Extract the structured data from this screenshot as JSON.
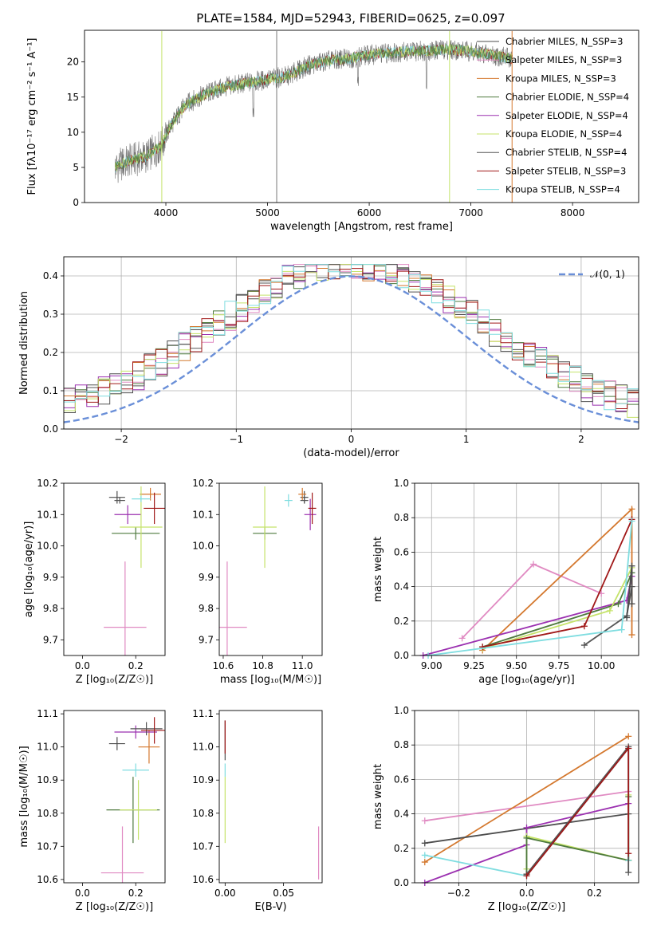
{
  "colors": {
    "chabrier_miles": "#4d4d4d",
    "salpeter_miles": "#e08ac2",
    "kroupa_miles": "#d4782e",
    "chabrier_elodie": "#4e7a3e",
    "salpeter_elodie": "#9b30b0",
    "kroupa_elodie": "#c5e36a",
    "chabrier_stelib": "#555555",
    "salpeter_stelib": "#a01818",
    "kroupa_stelib": "#7fdde0",
    "normal_curve": "#6a8fd8"
  },
  "chart_data": [
    {
      "type": "line",
      "title": "PLATE=1584, MJD=52943, FIBERID=0625, z=0.097",
      "xlabel": "wavelength [Angstrom, rest frame]",
      "ylabel": "Flux [fλ10⁻¹⁷ erg cm⁻² s⁻¹ A⁻¹]",
      "xlim": [
        3200,
        8650
      ],
      "ylim": [
        0,
        24.5
      ],
      "xticks": [
        "4000",
        "5000",
        "6000",
        "7000",
        "8000"
      ],
      "yticks": [
        "0",
        "5",
        "10",
        "15",
        "20"
      ],
      "grid": false,
      "legend_position": "right",
      "legend": [
        "Chabrier MILES, N_SSP=3",
        "Salpeter MILES, N_SSP=3",
        "Kroupa MILES, N_SSP=3",
        "Chabrier ELODIE, N_SSP=4",
        "Salpeter ELODIE, N_SSP=4",
        "Kroupa ELODIE, N_SSP=4",
        "Chabrier STELIB, N_SSP=4",
        "Salpeter STELIB, N_SSP=3",
        "Kroupa STELIB, N_SSP=4"
      ],
      "spectrum_anchors": {
        "x": [
          3500,
          3650,
          3800,
          3950,
          4050,
          4200,
          4400,
          4600,
          4800,
          5000,
          5200,
          5400,
          5600,
          5800,
          6000,
          6200,
          6400,
          6600,
          6800,
          7000,
          7200,
          7400
        ],
        "y": [
          5,
          6,
          6.5,
          8,
          11,
          14,
          15.5,
          16.5,
          17,
          17.5,
          18,
          19.5,
          20.2,
          20.5,
          21,
          21.3,
          21.5,
          21.6,
          21.8,
          21.5,
          21,
          20.5
        ]
      }
    },
    {
      "type": "bar",
      "xlabel": "(data-model)/error",
      "ylabel": "Normed distribution",
      "xlim": [
        -2.5,
        2.5
      ],
      "ylim": [
        0,
        0.45
      ],
      "xticks": [
        "−2",
        "−1",
        "0",
        "1",
        "2"
      ],
      "yticks": [
        "0.0",
        "0.1",
        "0.2",
        "0.3",
        "0.4"
      ],
      "grid": true,
      "legend_position": "top-right",
      "legend": [
        "𝒩(0, 1)"
      ],
      "bin_width": 0.1
    },
    {
      "type": "scatter",
      "xlabel": "Z [log₁₀(Z/Z☉)]",
      "ylabel": "age  [log₁₀(age/yr)]",
      "xlim": [
        -0.07,
        0.31
      ],
      "ylim": [
        9.65,
        10.2
      ],
      "xticks": [
        "0.0",
        "0.2"
      ],
      "yticks": [
        "9.7",
        "9.8",
        "9.9",
        "10.0",
        "10.1",
        "10.2"
      ],
      "series": [
        {
          "key": "chabrier_miles",
          "x": 0.13,
          "y": 10.155,
          "xerr": 0.03,
          "yerr": 0.02
        },
        {
          "key": "salpeter_miles",
          "x": 0.16,
          "y": 9.74,
          "xerr": 0.08,
          "yerr": 0.21
        },
        {
          "key": "kroupa_miles",
          "x": 0.255,
          "y": 10.165,
          "xerr": 0.04,
          "yerr": 0.02
        },
        {
          "key": "chabrier_elodie",
          "x": 0.2,
          "y": 10.04,
          "xerr": 0.09,
          "yerr": 0.02
        },
        {
          "key": "salpeter_elodie",
          "x": 0.17,
          "y": 10.1,
          "xerr": 0.05,
          "yerr": 0.03
        },
        {
          "key": "kroupa_elodie",
          "x": 0.22,
          "y": 10.06,
          "xerr": 0.08,
          "yerr": 0.13
        },
        {
          "key": "chabrier_stelib",
          "x": 0.14,
          "y": 10.145,
          "xerr": 0.02,
          "yerr": 0.01
        },
        {
          "key": "salpeter_stelib",
          "x": 0.27,
          "y": 10.12,
          "xerr": 0.04,
          "yerr": 0.05
        },
        {
          "key": "kroupa_stelib",
          "x": 0.22,
          "y": 10.15,
          "xerr": 0.035,
          "yerr": 0.01
        }
      ]
    },
    {
      "type": "scatter",
      "xlabel": "mass [log₁₀(M/M☉)]",
      "ylabel": "",
      "xlim": [
        10.58,
        11.1
      ],
      "ylim": [
        9.65,
        10.2
      ],
      "xticks": [
        "10.6",
        "10.8",
        "11.0"
      ],
      "yticks": [
        "9.7",
        "9.8",
        "9.9",
        "10.0",
        "10.1",
        "10.2"
      ],
      "series": [
        {
          "key": "chabrier_miles",
          "x": 11.01,
          "y": 10.155,
          "xerr": 0.02,
          "yerr": 0.02
        },
        {
          "key": "salpeter_miles",
          "x": 10.62,
          "y": 9.74,
          "xerr": 0.1,
          "yerr": 0.21
        },
        {
          "key": "kroupa_miles",
          "x": 11.0,
          "y": 10.165,
          "xerr": 0.02,
          "yerr": 0.02
        },
        {
          "key": "chabrier_elodie",
          "x": 10.81,
          "y": 10.04,
          "xerr": 0.06,
          "yerr": 0.02
        },
        {
          "key": "salpeter_elodie",
          "x": 11.04,
          "y": 10.1,
          "xerr": 0.03,
          "yerr": 0.05
        },
        {
          "key": "kroupa_elodie",
          "x": 10.81,
          "y": 10.06,
          "xerr": 0.06,
          "yerr": 0.13
        },
        {
          "key": "chabrier_stelib",
          "x": 11.01,
          "y": 10.145,
          "xerr": 0.02,
          "yerr": 0.01
        },
        {
          "key": "salpeter_stelib",
          "x": 11.05,
          "y": 10.12,
          "xerr": 0.02,
          "yerr": 0.05
        },
        {
          "key": "kroupa_stelib",
          "x": 10.93,
          "y": 10.145,
          "xerr": 0.02,
          "yerr": 0.02
        }
      ]
    },
    {
      "type": "line",
      "xlabel": "age  [log₁₀(age/yr)]",
      "ylabel": "mass weight",
      "xlim": [
        8.9,
        10.22
      ],
      "ylim": [
        0,
        1.0
      ],
      "xticks": [
        "9.00",
        "9.25",
        "9.50",
        "9.75",
        "10.00"
      ],
      "yticks": [
        "0.0",
        "0.2",
        "0.4",
        "0.6",
        "0.8",
        "1.0"
      ],
      "grid": true,
      "series": [
        {
          "key": "salpeter_miles",
          "x": [
            9.18,
            9.6,
            10.0
          ],
          "y": [
            0.1,
            0.53,
            0.36
          ]
        },
        {
          "key": "kroupa_miles",
          "x": [
            9.3,
            10.18,
            10.18
          ],
          "y": [
            0.03,
            0.85,
            0.12
          ]
        },
        {
          "key": "salpeter_elodie",
          "x": [
            8.95,
            10.15,
            10.18
          ],
          "y": [
            0.0,
            0.32,
            0.46
          ]
        },
        {
          "key": "chabrier_elodie",
          "x": [
            9.3,
            10.1,
            10.18
          ],
          "y": [
            0.05,
            0.3,
            0.48
          ]
        },
        {
          "key": "kroupa_elodie",
          "x": [
            9.3,
            10.05,
            10.18
          ],
          "y": [
            0.04,
            0.26,
            0.51
          ]
        },
        {
          "key": "salpeter_stelib",
          "x": [
            9.3,
            9.9,
            10.18
          ],
          "y": [
            0.05,
            0.17,
            0.79
          ]
        },
        {
          "key": "chabrier_stelib",
          "x": [
            9.9,
            10.15,
            10.18
          ],
          "y": [
            0.06,
            0.23,
            0.4
          ]
        },
        {
          "key": "kroupa_stelib",
          "x": [
            8.98,
            10.12,
            10.18
          ],
          "y": [
            0.0,
            0.15,
            0.78
          ]
        },
        {
          "key": "chabrier_miles",
          "x": [
            10.15,
            10.18,
            10.18
          ],
          "y": [
            0.22,
            0.52,
            0.3
          ]
        }
      ]
    },
    {
      "type": "scatter",
      "xlabel": "Z [log₁₀(Z/Z☉)]",
      "ylabel": "mass [log₁₀(M/M☉)]",
      "xlim": [
        -0.07,
        0.31
      ],
      "ylim": [
        10.59,
        11.11
      ],
      "xticks": [
        "0.0",
        "0.2"
      ],
      "yticks": [
        "10.6",
        "10.7",
        "10.8",
        "10.9",
        "11.0",
        "11.1"
      ],
      "series": [
        {
          "key": "chabrier_miles",
          "x": 0.13,
          "y": 11.01,
          "xerr": 0.03,
          "yerr": 0.02
        },
        {
          "key": "salpeter_miles",
          "x": 0.15,
          "y": 10.62,
          "xerr": 0.08,
          "yerr": 0.14
        },
        {
          "key": "kroupa_miles",
          "x": 0.25,
          "y": 11.0,
          "xerr": 0.04,
          "yerr": 0.05
        },
        {
          "key": "chabrier_elodie",
          "x": 0.19,
          "y": 10.81,
          "xerr": 0.1,
          "yerr": 0.1
        },
        {
          "key": "salpeter_elodie",
          "x": 0.2,
          "y": 11.045,
          "xerr": 0.08,
          "yerr": 0.02
        },
        {
          "key": "kroupa_elodie",
          "x": 0.21,
          "y": 10.81,
          "xerr": 0.07,
          "yerr": 0.09
        },
        {
          "key": "chabrier_stelib",
          "x": 0.24,
          "y": 11.055,
          "xerr": 0.06,
          "yerr": 0.02
        },
        {
          "key": "salpeter_stelib",
          "x": 0.27,
          "y": 11.05,
          "xerr": 0.05,
          "yerr": 0.04
        },
        {
          "key": "kroupa_stelib",
          "x": 0.2,
          "y": 10.93,
          "xerr": 0.05,
          "yerr": 0.02
        }
      ]
    },
    {
      "type": "scatter",
      "xlabel": "E(B-V)",
      "ylabel": "",
      "xlim": [
        -0.005,
        0.083
      ],
      "ylim": [
        10.59,
        11.11
      ],
      "xticks": [
        "0.00",
        "0.05"
      ],
      "yticks": [
        "10.6",
        "10.7",
        "10.8",
        "10.9",
        "11.0",
        "11.1"
      ],
      "series": [
        {
          "key": "chabrier_miles",
          "x": 0.0,
          "y": 11.02,
          "xerr": 0,
          "yerr": 0.06
        },
        {
          "key": "salpeter_miles",
          "x": 0.08,
          "y": 10.68,
          "xerr": 0,
          "yerr": 0.08
        },
        {
          "key": "kroupa_elodie",
          "x": 0.0,
          "y": 10.81,
          "xerr": 0,
          "yerr": 0.1
        },
        {
          "key": "salpeter_stelib",
          "x": 0.0,
          "y": 11.03,
          "xerr": 0,
          "yerr": 0.05
        },
        {
          "key": "kroupa_stelib",
          "x": 0.0,
          "y": 10.93,
          "xerr": 0,
          "yerr": 0.02
        }
      ]
    },
    {
      "type": "line",
      "xlabel": "Z [log₁₀(Z/Z☉)]",
      "ylabel": "mass weight",
      "xlim": [
        -0.33,
        0.33
      ],
      "ylim": [
        0,
        1.0
      ],
      "xticks": [
        "−0.2",
        "0.0",
        "0.2"
      ],
      "yticks": [
        "0.0",
        "0.2",
        "0.4",
        "0.6",
        "0.8",
        "1.0"
      ],
      "grid": true,
      "series": [
        {
          "key": "salpeter_miles",
          "x": [
            -0.3,
            0.3
          ],
          "y": [
            0.36,
            0.53
          ]
        },
        {
          "key": "kroupa_miles",
          "x": [
            -0.3,
            0.3
          ],
          "y": [
            0.12,
            0.85
          ]
        },
        {
          "key": "chabrier_miles",
          "x": [
            -0.3,
            0.3
          ],
          "y": [
            0.23,
            0.4
          ]
        },
        {
          "key": "salpeter_elodie",
          "x": [
            -0.3,
            0.0,
            0.0,
            0.3
          ],
          "y": [
            0.0,
            0.22,
            0.32,
            0.46
          ]
        },
        {
          "key": "kroupa_elodie",
          "x": [
            0.0,
            0.0,
            0.3,
            0.3
          ],
          "y": [
            0.08,
            0.27,
            0.13,
            0.51
          ]
        },
        {
          "key": "chabrier_elodie",
          "x": [
            0.0,
            0.0,
            0.3,
            0.3
          ],
          "y": [
            0.05,
            0.26,
            0.13,
            0.5
          ]
        },
        {
          "key": "kroupa_stelib",
          "x": [
            -0.3,
            0.0,
            0.3,
            0.3
          ],
          "y": [
            0.16,
            0.04,
            0.78,
            0.13
          ]
        },
        {
          "key": "chabrier_stelib",
          "x": [
            0.0,
            0.3,
            0.3
          ],
          "y": [
            0.05,
            0.79,
            0.06
          ]
        },
        {
          "key": "salpeter_stelib",
          "x": [
            0.0,
            0.3,
            0.3
          ],
          "y": [
            0.04,
            0.78,
            0.17
          ]
        }
      ]
    }
  ]
}
